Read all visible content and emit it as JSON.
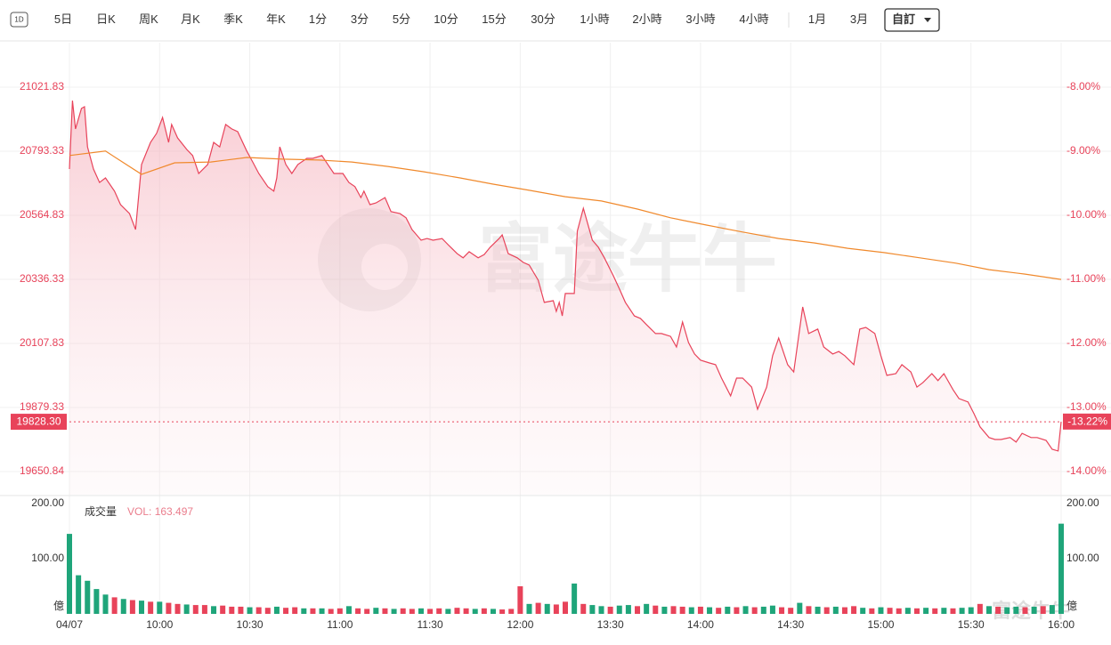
{
  "toolbar": {
    "icon": "1D",
    "tabs": [
      "5日",
      "日K",
      "周K",
      "月K",
      "季K",
      "年K",
      "1分",
      "3分",
      "5分",
      "10分",
      "15分",
      "30分",
      "1小時",
      "2小時",
      "3小時",
      "4小時",
      "1月",
      "3月"
    ],
    "selected": "自訂"
  },
  "chart_data": [
    {
      "type": "line",
      "watermark": "富途牛牛",
      "grid": true,
      "xlim": [
        0,
        330
      ],
      "xticks": [
        {
          "value": 0,
          "label": "04/07"
        },
        {
          "value": 30,
          "label": "10:00"
        },
        {
          "value": 60,
          "label": "10:30"
        },
        {
          "value": 90,
          "label": "11:00"
        },
        {
          "value": 120,
          "label": "11:30"
        },
        {
          "value": 150,
          "label": "12:00"
        },
        {
          "value": 180,
          "label": "13:30"
        },
        {
          "value": 210,
          "label": "14:00"
        },
        {
          "value": 240,
          "label": "14:30"
        },
        {
          "value": 270,
          "label": "15:00"
        },
        {
          "value": 300,
          "label": "15:30"
        },
        {
          "value": 330,
          "label": "16:00"
        }
      ],
      "ylim": [
        19568.3,
        21180.5
      ],
      "yticks": [
        21021.83,
        20793.33,
        20564.83,
        20336.33,
        20107.83,
        19879.33,
        19650.84
      ],
      "y2lim": [
        -14.36,
        -7.31
      ],
      "y2ticks": [
        {
          "value": -8,
          "label": "-8.00%"
        },
        {
          "value": -9,
          "label": "-9.00%"
        },
        {
          "value": -10,
          "label": "-10.00%"
        },
        {
          "value": -11,
          "label": "-11.00%"
        },
        {
          "value": -12,
          "label": "-12.00%"
        },
        {
          "value": -13,
          "label": "-13.00%"
        },
        {
          "value": -14,
          "label": "-14.00%"
        }
      ],
      "last": {
        "value": 19828.3,
        "label": "19828.30",
        "pct": -13.22,
        "pct_label": "-13.22%",
        "color": "#e8435a"
      },
      "series": [
        {
          "color": "#e8435a",
          "fill": true,
          "x": [
            0,
            1,
            2,
            4,
            5,
            6,
            8,
            10,
            12,
            15,
            17,
            20,
            22,
            24,
            27,
            29,
            31,
            33,
            34,
            36,
            39,
            41,
            43,
            46,
            48,
            50,
            52,
            54,
            56,
            59,
            61,
            63,
            66,
            68,
            69,
            70,
            72,
            74,
            76,
            79,
            81,
            84,
            86,
            88,
            91,
            93,
            95,
            97,
            98,
            100,
            102,
            105,
            107,
            110,
            112,
            114,
            117,
            119,
            121,
            124,
            126,
            129,
            131,
            133,
            136,
            138,
            140,
            143,
            144,
            146,
            149,
            151,
            153,
            156,
            158,
            161,
            162,
            163,
            164,
            165,
            168,
            169,
            171,
            174,
            176,
            178,
            181,
            183,
            185,
            188,
            190,
            192,
            195,
            197,
            200,
            202,
            204,
            206,
            208,
            210,
            213,
            215,
            217,
            220,
            222,
            224,
            227,
            229,
            232,
            234,
            236,
            239,
            241,
            244,
            246,
            249,
            251,
            254,
            256,
            258,
            261,
            263,
            265,
            268,
            270,
            272,
            275,
            277,
            280,
            282,
            284,
            287,
            289,
            291,
            294,
            296,
            299,
            301,
            303,
            306,
            308,
            310,
            313,
            315,
            317,
            320,
            322,
            325,
            327,
            329,
            330
          ],
          "values": [
            20730,
            20974,
            20873,
            20946,
            20952,
            20809,
            20730,
            20682,
            20698,
            20651,
            20603,
            20571,
            20514,
            20746,
            20825,
            20857,
            20914,
            20825,
            20889,
            20841,
            20800,
            20778,
            20714,
            20746,
            20825,
            20809,
            20889,
            20873,
            20863,
            20794,
            20755,
            20714,
            20667,
            20651,
            20698,
            20809,
            20746,
            20714,
            20746,
            20768,
            20768,
            20778,
            20746,
            20714,
            20714,
            20682,
            20667,
            20628,
            20651,
            20603,
            20609,
            20628,
            20578,
            20571,
            20556,
            20514,
            20476,
            20482,
            20476,
            20482,
            20460,
            20428,
            20413,
            20435,
            20413,
            20425,
            20451,
            20482,
            20495,
            20428,
            20413,
            20397,
            20387,
            20333,
            20254,
            20260,
            20222,
            20254,
            20206,
            20286,
            20286,
            20508,
            20590,
            20476,
            20451,
            20413,
            20349,
            20302,
            20254,
            20206,
            20197,
            20175,
            20143,
            20143,
            20133,
            20095,
            20184,
            20111,
            20070,
            20048,
            20038,
            20032,
            19984,
            19921,
            19984,
            19984,
            19952,
            19873,
            19952,
            20064,
            20127,
            20032,
            20006,
            20238,
            20143,
            20159,
            20095,
            20070,
            20079,
            20064,
            20032,
            20159,
            20165,
            20143,
            20064,
            19994,
            20000,
            20032,
            20006,
            19952,
            19968,
            20000,
            19975,
            20000,
            19943,
            19911,
            19899,
            19857,
            19810,
            19772,
            19765,
            19765,
            19772,
            19756,
            19787,
            19772,
            19772,
            19762,
            19730,
            19724,
            19828.3
          ]
        },
        {
          "color": "#f0892c",
          "fill": false,
          "x": [
            0,
            12,
            24,
            35,
            47,
            59,
            71,
            83,
            94,
            106,
            118,
            130,
            141,
            153,
            165,
            177,
            189,
            200,
            212,
            224,
            236,
            248,
            259,
            271,
            283,
            295,
            306,
            318,
            330
          ],
          "values": [
            20778,
            20794,
            20711,
            20752,
            20755,
            20771,
            20765,
            20762,
            20755,
            20739,
            20720,
            20698,
            20676,
            20654,
            20631,
            20616,
            20587,
            20556,
            20530,
            20505,
            20482,
            20466,
            20447,
            20432,
            20413,
            20394,
            20371,
            20355,
            20336
          ]
        }
      ]
    },
    {
      "type": "bar",
      "title": "成交量",
      "xlim": [
        0,
        330
      ],
      "ylim": [
        0,
        212.9
      ],
      "yticks": [
        {
          "value": 200,
          "label": "200.00"
        },
        {
          "value": 100,
          "label": "100.00"
        },
        {
          "value": 0,
          "label": "億"
        }
      ],
      "series": [
        {
          "name": "VOL:",
          "name_color": "#ea7d8c",
          "x": [
            0,
            3,
            6,
            9,
            12,
            15,
            18,
            21,
            24,
            27,
            30,
            33,
            36,
            39,
            42,
            45,
            48,
            51,
            54,
            57,
            60,
            63,
            66,
            69,
            72,
            75,
            78,
            81,
            84,
            87,
            90,
            93,
            96,
            99,
            102,
            105,
            108,
            111,
            114,
            117,
            120,
            123,
            126,
            129,
            132,
            135,
            138,
            141,
            144,
            147,
            150,
            153,
            156,
            159,
            162,
            165,
            168,
            171,
            174,
            177,
            180,
            183,
            186,
            189,
            192,
            195,
            198,
            201,
            204,
            207,
            210,
            213,
            216,
            219,
            222,
            225,
            228,
            231,
            234,
            237,
            240,
            243,
            246,
            249,
            252,
            255,
            258,
            261,
            264,
            267,
            270,
            273,
            276,
            279,
            282,
            285,
            288,
            291,
            294,
            297,
            300,
            303,
            306,
            309,
            312,
            315,
            318,
            321,
            324,
            327,
            330
          ],
          "values": [
            145,
            70,
            60,
            45,
            35,
            30,
            27,
            25,
            24,
            22,
            22,
            20,
            18,
            17,
            16,
            16,
            14,
            15,
            13,
            13,
            12,
            12,
            11,
            13,
            11,
            12,
            10,
            10,
            10,
            9,
            10,
            14,
            10,
            9,
            11,
            10,
            9,
            10,
            9,
            10,
            9,
            10,
            9,
            11,
            10,
            9,
            10,
            9,
            8,
            9,
            50,
            18,
            20,
            18,
            17,
            22,
            55,
            18,
            16,
            14,
            13,
            15,
            16,
            14,
            18,
            15,
            13,
            14,
            13,
            12,
            13,
            12,
            11,
            13,
            12,
            14,
            12,
            13,
            15,
            12,
            11,
            20,
            14,
            13,
            12,
            13,
            12,
            14,
            11,
            10,
            12,
            11,
            10,
            11,
            10,
            11,
            10,
            11,
            10,
            11,
            12,
            18,
            14,
            13,
            12,
            13,
            12,
            13,
            14,
            16,
            163.497
          ],
          "colors": [
            "#1fa57a",
            "#1fa57a",
            "#1fa57a",
            "#1fa57a",
            "#1fa57a",
            "#e8435a",
            "#1fa57a",
            "#e8435a",
            "#1fa57a",
            "#e8435a",
            "#1fa57a",
            "#e8435a",
            "#e8435a",
            "#1fa57a",
            "#e8435a",
            "#e8435a",
            "#1fa57a",
            "#e8435a",
            "#e8435a",
            "#e8435a",
            "#1fa57a",
            "#e8435a",
            "#e8435a",
            "#1fa57a",
            "#e8435a",
            "#e8435a",
            "#1fa57a",
            "#e8435a",
            "#1fa57a",
            "#e8435a",
            "#e8435a",
            "#1fa57a",
            "#e8435a",
            "#e8435a",
            "#1fa57a",
            "#e8435a",
            "#1fa57a",
            "#e8435a",
            "#e8435a",
            "#1fa57a",
            "#e8435a",
            "#e8435a",
            "#1fa57a",
            "#e8435a",
            "#e8435a",
            "#1fa57a",
            "#e8435a",
            "#1fa57a",
            "#e8435a",
            "#e8435a",
            "#e8435a",
            "#1fa57a",
            "#e8435a",
            "#1fa57a",
            "#e8435a",
            "#e8435a",
            "#1fa57a",
            "#e8435a",
            "#1fa57a",
            "#1fa57a",
            "#e8435a",
            "#1fa57a",
            "#1fa57a",
            "#e8435a",
            "#1fa57a",
            "#e8435a",
            "#1fa57a",
            "#e8435a",
            "#e8435a",
            "#1fa57a",
            "#e8435a",
            "#1fa57a",
            "#e8435a",
            "#1fa57a",
            "#e8435a",
            "#1fa57a",
            "#e8435a",
            "#1fa57a",
            "#1fa57a",
            "#e8435a",
            "#e8435a",
            "#1fa57a",
            "#e8435a",
            "#1fa57a",
            "#e8435a",
            "#1fa57a",
            "#e8435a",
            "#e8435a",
            "#1fa57a",
            "#e8435a",
            "#1fa57a",
            "#e8435a",
            "#e8435a",
            "#1fa57a",
            "#e8435a",
            "#1fa57a",
            "#e8435a",
            "#1fa57a",
            "#e8435a",
            "#1fa57a",
            "#1fa57a",
            "#e8435a",
            "#1fa57a",
            "#e8435a",
            "#1fa57a",
            "#1fa57a",
            "#e8435a",
            "#1fa57a",
            "#e8435a",
            "#1fa57a",
            "#1fa57a"
          ]
        }
      ]
    }
  ]
}
